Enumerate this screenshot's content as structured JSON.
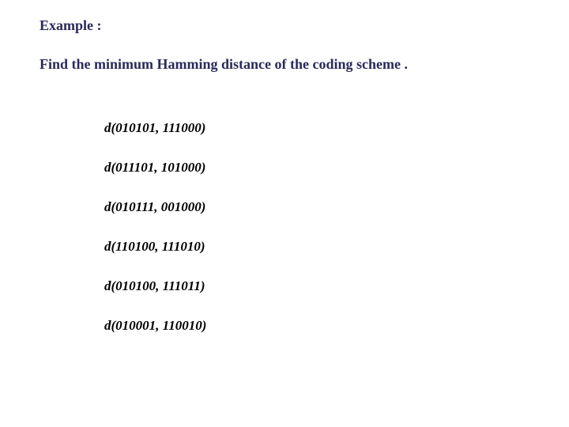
{
  "text_color_heading": "#2a2a5a",
  "text_color_body": "#000000",
  "heading": "Example :",
  "question": "Find the minimum Hamming distance of the coding scheme .",
  "distances": [
    "d(010101, 111000)",
    "d(011101, 101000)",
    "d(010111, 001000)",
    "d(110100, 111010)",
    "d(010100, 111011)",
    "d(010001, 110010)"
  ]
}
